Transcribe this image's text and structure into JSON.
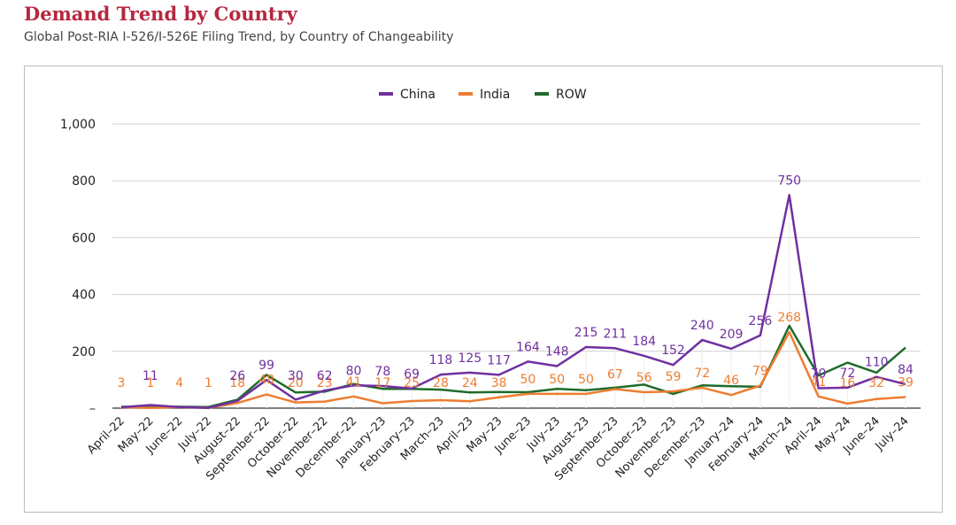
{
  "header": {
    "title": "Demand Trend by Country",
    "subtitle": "Global Post-RIA I-526/I-526E Filing Trend, by Country of Changeability"
  },
  "colors": {
    "China": "#7030a0",
    "India": "#ed7d31",
    "ROW": "#1e6b2a"
  },
  "chart_data": {
    "type": "line",
    "title": "",
    "xlabel": "",
    "ylabel": "",
    "ylim": [
      0,
      1000
    ],
    "yticks": [
      0,
      200,
      400,
      600,
      800,
      1000
    ],
    "ytick_labels": [
      "–",
      "200",
      "400",
      "600",
      "800",
      "1,000"
    ],
    "grid": true,
    "legend_position": "top",
    "categories": [
      "April–22",
      "May–22",
      "June–22",
      "July–22",
      "August–22",
      "September–22",
      "October–22",
      "November–22",
      "December–22",
      "January–23",
      "February–23",
      "March–23",
      "April–23",
      "May–23",
      "June–23",
      "July–23",
      "August–23",
      "September–23",
      "October–23",
      "November–23",
      "December–23",
      "January–24",
      "February–24",
      "March–24",
      "April–24",
      "May–24",
      "June–24",
      "July–24"
    ],
    "series": [
      {
        "name": "China",
        "values": [
          3,
          11,
          4,
          1,
          26,
          99,
          30,
          62,
          80,
          78,
          69,
          118,
          125,
          117,
          164,
          148,
          215,
          211,
          184,
          152,
          240,
          209,
          256,
          750,
          70,
          72,
          110,
          84
        ],
        "labels": [
          "",
          "11",
          "",
          "",
          "26",
          "99",
          "30",
          "62",
          "80",
          "78",
          "69",
          "118",
          "125",
          "117",
          "164",
          "148",
          "215",
          "211",
          "184",
          "152",
          "240",
          "209",
          "256",
          "750",
          "70",
          "72",
          "110",
          "84"
        ]
      },
      {
        "name": "India",
        "values": [
          3,
          1,
          4,
          1,
          18,
          48,
          20,
          23,
          41,
          17,
          25,
          28,
          24,
          38,
          50,
          50,
          50,
          67,
          56,
          59,
          72,
          46,
          79,
          268,
          41,
          16,
          32,
          39
        ],
        "labels": [
          "3",
          "1",
          "4",
          "1",
          "18",
          "48",
          "20",
          "23",
          "41",
          "17",
          "25",
          "28",
          "24",
          "38",
          "50",
          "50",
          "50",
          "67",
          "56",
          "59",
          "72",
          "46",
          "79",
          "268",
          "41",
          "16",
          "32",
          "39"
        ]
      },
      {
        "name": "ROW",
        "values": [
          5,
          3,
          5,
          4,
          30,
          117,
          55,
          58,
          85,
          68,
          68,
          65,
          55,
          57,
          56,
          68,
          63,
          72,
          83,
          50,
          80,
          77,
          75,
          290,
          115,
          160,
          125,
          213
        ],
        "labels": []
      }
    ]
  }
}
